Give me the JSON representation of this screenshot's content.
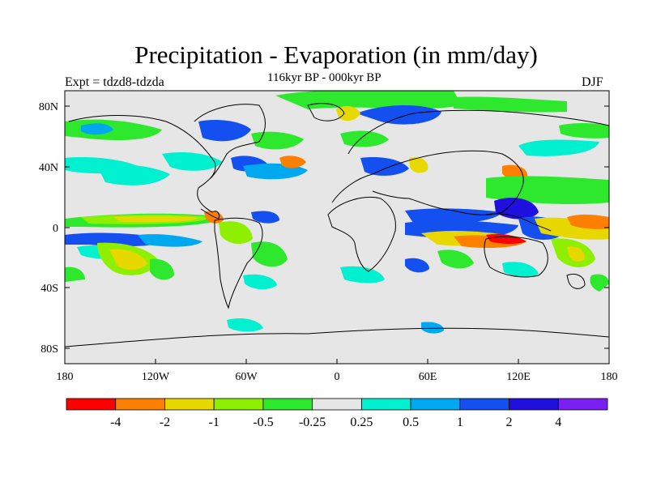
{
  "title": "Precipitation - Evaporation (in mm/day)",
  "subtitle": "116kyr BP - 000kyr BP",
  "expt_label": "Expt = tdzd8-tdzda",
  "season": "DJF",
  "axes": {
    "lat_ticks": [
      "80N",
      "40N",
      "0",
      "40S",
      "80S"
    ],
    "lon_ticks": [
      "180",
      "120W",
      "60W",
      "0",
      "60E",
      "120E",
      "180"
    ]
  },
  "colorbar": {
    "colors": [
      "#ff0000",
      "#ff7f00",
      "#e6d800",
      "#8ef000",
      "#2ee82e",
      "#e6e6e6",
      "#00f0d0",
      "#00a8f0",
      "#1450f0",
      "#2010e0",
      "#7a20f0"
    ],
    "labels": [
      "-4",
      "-2",
      "-1",
      "-0.5",
      "-0.25",
      "0.25",
      "0.5",
      "1",
      "2",
      "4"
    ]
  }
}
